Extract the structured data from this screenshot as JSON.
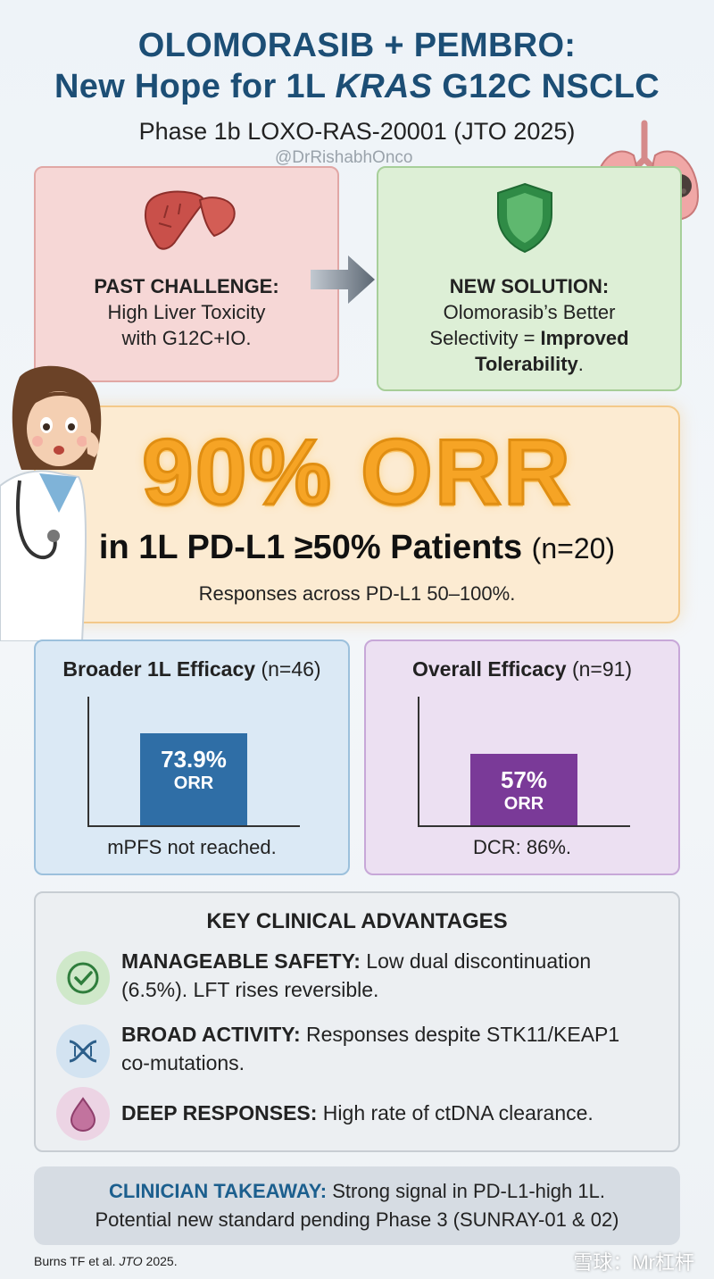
{
  "header": {
    "title_line1": "OLOMORASIB + PEMBRO:",
    "title_line2_pre": "New Hope for 1L ",
    "title_line2_italic": "KRAS",
    "title_line2_post": " G12C NSCLC",
    "subtitle": "Phase 1b LOXO-RAS-20001 (JTO 2025)",
    "handle": "@DrRishabhOnco"
  },
  "challenge": {
    "heading": "PAST CHALLENGE:",
    "line1": "High Liver Toxicity",
    "line2": "with G12C+IO."
  },
  "solution": {
    "heading": "NEW SOLUTION:",
    "line1": "Olomorasib’s Better",
    "line2_pre": "Selectivity = ",
    "line2_bold": "Improved",
    "line3_bold": "Tolerability",
    "line3_post": "."
  },
  "hero": {
    "big": "90% ORR",
    "line2": "in 1L PD-L1 ≥50% Patients",
    "line2_n": "(n=20)",
    "line3": "Responses across PD-L1 50–100%."
  },
  "broader": {
    "title": "Broader 1L Efficacy",
    "n": "(n=46)",
    "value": "73.9%",
    "label": "ORR",
    "value_num": 73.9,
    "foot": "mPFS not reached."
  },
  "overall": {
    "title": "Overall Efficacy",
    "n": "(n=91)",
    "value": "57%",
    "label": "ORR",
    "value_num": 57,
    "foot": "DCR: 86%."
  },
  "advantages": {
    "title": "KEY CLINICAL ADVANTAGES",
    "items": [
      {
        "icon": "check-circle-icon",
        "bold": "MANAGEABLE SAFETY:",
        "text": " Low dual discontinuation",
        "text2": "(6.5%). LFT rises reversible."
      },
      {
        "icon": "dna-icon",
        "bold": "BROAD ACTIVITY:",
        "text": " Responses despite STK11/KEAP1",
        "text2": "co-mutations."
      },
      {
        "icon": "drop-icon",
        "bold": "DEEP RESPONSES:",
        "text": " High rate of ctDNA clearance.",
        "text2": ""
      }
    ]
  },
  "takeaway": {
    "label": "CLINICIAN TAKEAWAY:",
    "line1": " Strong signal in PD-L1-high 1L.",
    "line2": "Potential new standard pending Phase 3 (SUNRAY-01 & 02)"
  },
  "reference": {
    "pre": "Burns TF et al. ",
    "journal": "JTO",
    "post": " 2025."
  },
  "watermark": "雪球：Mr杠杆",
  "colors": {
    "title": "#1c4e75",
    "orange": "#f6a425",
    "blue_bar": "#2f6ea6",
    "purple_bar": "#7a3a98"
  }
}
